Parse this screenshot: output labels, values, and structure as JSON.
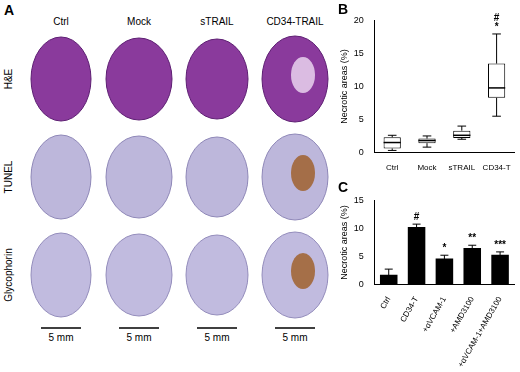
{
  "panel_a": {
    "title": "A",
    "columns": [
      "Ctrl",
      "Mock",
      "sTRAIL",
      "CD34-TRAIL"
    ],
    "rows": [
      "H&E",
      "TUNEL",
      "Glycophorin"
    ],
    "scale_bar": "5 mm"
  },
  "chart_data": [
    {
      "type": "box",
      "title": "B",
      "categories": [
        "Ctrl",
        "Mock",
        "sTRAIL",
        "CD34-T"
      ],
      "min": [
        0.3,
        0.8,
        2.0,
        5.5
      ],
      "q1": [
        0.6,
        1.4,
        2.2,
        8.3
      ],
      "median": [
        1.5,
        1.8,
        2.6,
        9.8
      ],
      "q3": [
        2.3,
        2.1,
        3.3,
        13.5
      ],
      "max": [
        2.6,
        2.5,
        4.0,
        18.0
      ],
      "color": "#000000",
      "y_label": "Necrotic areas (%)",
      "ylim": [
        0,
        20
      ],
      "yticks": [
        0,
        5,
        10,
        15,
        20
      ],
      "grid": false,
      "annotations": [
        {
          "category": "CD34-T",
          "text": "*"
        },
        {
          "category": "CD34-T",
          "text": "#"
        }
      ]
    },
    {
      "type": "bar",
      "title": "C",
      "categories": [
        "Ctrl",
        "CD34-T",
        "+αVCAM-1",
        "+AMD3100",
        "+αVCAM-1+AMD3100"
      ],
      "values": [
        1.7,
        10.3,
        4.6,
        6.5,
        5.3
      ],
      "errors": [
        1.0,
        0.5,
        0.6,
        0.5,
        0.5
      ],
      "color": "#000000",
      "y_label": "Necrotic areas (%)",
      "ylim": [
        0,
        15
      ],
      "yticks": [
        0,
        5,
        10,
        15
      ],
      "grid": false,
      "annotations": [
        {
          "category": "CD34-T",
          "text": "#"
        },
        {
          "category": "+αVCAM-1",
          "text": "*"
        },
        {
          "category": "+AMD3100",
          "text": "**"
        },
        {
          "category": "+αVCAM-1+AMD3100",
          "text": "***"
        }
      ]
    }
  ]
}
